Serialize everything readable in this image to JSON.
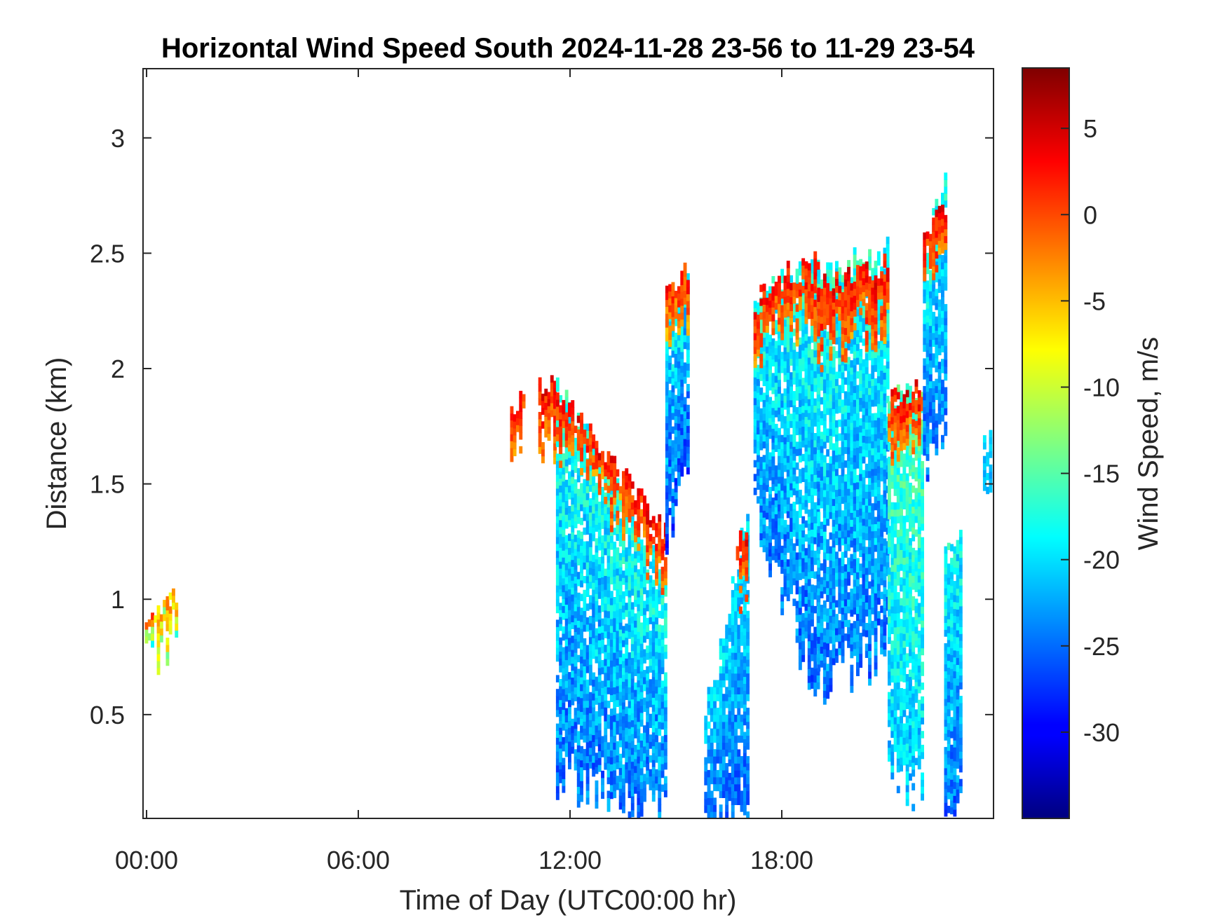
{
  "chart_data": {
    "type": "heatmap",
    "title": "Horizontal Wind Speed South 2024-11-28 23-56 to 11-29 23-54",
    "xlabel": "Time of Day (UTC00:00 hr)",
    "ylabel": "Distance (km)",
    "colorbar_label": "Wind Speed, m/s",
    "xlim_hours": [
      -0.1,
      24.0
    ],
    "ylim_km": [
      0.05,
      3.3
    ],
    "clim_ms": [
      -35,
      8.5
    ],
    "colormap": "jet",
    "x_ticks": [
      {
        "value": 0,
        "label": "00:00"
      },
      {
        "value": 6,
        "label": "06:00"
      },
      {
        "value": 12,
        "label": "12:00"
      },
      {
        "value": 18,
        "label": "18:00"
      }
    ],
    "y_ticks": [
      {
        "value": 0.5,
        "label": "0.5"
      },
      {
        "value": 1,
        "label": "1"
      },
      {
        "value": 1.5,
        "label": "1.5"
      },
      {
        "value": 2,
        "label": "2"
      },
      {
        "value": 2.5,
        "label": "2.5"
      },
      {
        "value": 3,
        "label": "3"
      }
    ],
    "colorbar_ticks": [
      {
        "value": 5,
        "label": "5"
      },
      {
        "value": 0,
        "label": "0"
      },
      {
        "value": -5,
        "label": "-5"
      },
      {
        "value": -10,
        "label": "-10"
      },
      {
        "value": -15,
        "label": "-15"
      },
      {
        "value": -20,
        "label": "-20"
      },
      {
        "value": -25,
        "label": "-25"
      },
      {
        "value": -30,
        "label": "-30"
      }
    ],
    "regions": [
      {
        "t0": -0.05,
        "t1": 0.85,
        "base_low": 0.75,
        "base_high": 0.85,
        "top_low": 0.88,
        "top_high": 1.06,
        "v_low": -20,
        "v_high": 5
      },
      {
        "t0": 10.3,
        "t1": 10.8,
        "base_low": 1.7,
        "base_high": 1.72,
        "top_low": 1.82,
        "top_high": 1.84,
        "v_low": -5,
        "v_high": 5
      },
      {
        "t0": 11.1,
        "t1": 11.6,
        "base_low": 1.72,
        "base_high": 1.68,
        "top_low": 1.93,
        "top_high": 1.92,
        "v_low": -5,
        "v_high": 6
      },
      {
        "t0": 11.6,
        "t1": 14.7,
        "base_low": 0.25,
        "base_high": 0.05,
        "top_low": 1.9,
        "top_high": 1.1,
        "v_low": -28,
        "v_high": -14
      },
      {
        "t0": 11.6,
        "t1": 14.7,
        "base_low": 1.68,
        "base_high": 1.08,
        "top_low": 1.9,
        "top_high": 1.28,
        "v_low": -5,
        "v_high": 6
      },
      {
        "t0": 14.7,
        "t1": 15.3,
        "base_low": 1.15,
        "base_high": 1.6,
        "top_low": 2.2,
        "top_high": 2.42,
        "v_low": -30,
        "v_high": -15
      },
      {
        "t0": 14.7,
        "t1": 15.3,
        "base_low": 2.1,
        "base_high": 2.22,
        "top_low": 2.3,
        "top_high": 2.42,
        "v_low": -8,
        "v_high": 5
      },
      {
        "t0": 15.8,
        "t1": 17.0,
        "base_low": 0.05,
        "base_high": 0.05,
        "top_low": 0.5,
        "top_high": 1.35,
        "v_low": -28,
        "v_high": -17
      },
      {
        "t0": 16.7,
        "t1": 17.0,
        "base_low": 1.05,
        "base_high": 1.0,
        "top_low": 1.2,
        "top_high": 1.35,
        "v_low": -5,
        "v_high": 6
      },
      {
        "t0": 17.2,
        "t1": 19.0,
        "base_low": 1.35,
        "base_high": 0.6,
        "top_low": 2.3,
        "top_high": 2.45,
        "v_low": -28,
        "v_high": -14
      },
      {
        "t0": 17.2,
        "t1": 19.0,
        "base_low": 2.1,
        "base_high": 2.25,
        "top_low": 2.3,
        "top_high": 2.45,
        "v_low": -5,
        "v_high": 6
      },
      {
        "t0": 19.0,
        "t1": 21.0,
        "base_low": 0.6,
        "base_high": 0.8,
        "top_low": 2.4,
        "top_high": 2.5,
        "v_low": -28,
        "v_high": -14
      },
      {
        "t0": 19.0,
        "t1": 21.0,
        "base_low": 2.1,
        "base_high": 2.2,
        "top_low": 2.35,
        "top_high": 2.45,
        "v_low": -5,
        "v_high": 6
      },
      {
        "t0": 21.0,
        "t1": 22.0,
        "base_low": 0.3,
        "base_high": 0.15,
        "top_low": 1.9,
        "top_high": 1.9,
        "v_low": -24,
        "v_high": -12
      },
      {
        "t0": 21.0,
        "t1": 22.0,
        "base_low": 1.7,
        "base_high": 1.72,
        "top_low": 1.9,
        "top_high": 1.9,
        "v_low": -5,
        "v_high": 6
      },
      {
        "t0": 22.0,
        "t1": 22.6,
        "base_low": 1.5,
        "base_high": 1.8,
        "top_low": 2.5,
        "top_high": 2.8,
        "v_low": -28,
        "v_high": -15
      },
      {
        "t0": 22.0,
        "t1": 22.6,
        "base_low": 2.4,
        "base_high": 2.55,
        "top_low": 2.6,
        "top_high": 2.7,
        "v_low": -5,
        "v_high": 6
      },
      {
        "t0": 22.6,
        "t1": 23.1,
        "base_low": 0.05,
        "base_high": 0.1,
        "top_low": 1.2,
        "top_high": 1.35,
        "v_low": -28,
        "v_high": -15
      },
      {
        "t0": 23.7,
        "t1": 23.95,
        "base_low": 1.4,
        "base_high": 1.5,
        "top_low": 1.65,
        "top_high": 1.7,
        "v_low": -24,
        "v_high": -18
      }
    ]
  }
}
